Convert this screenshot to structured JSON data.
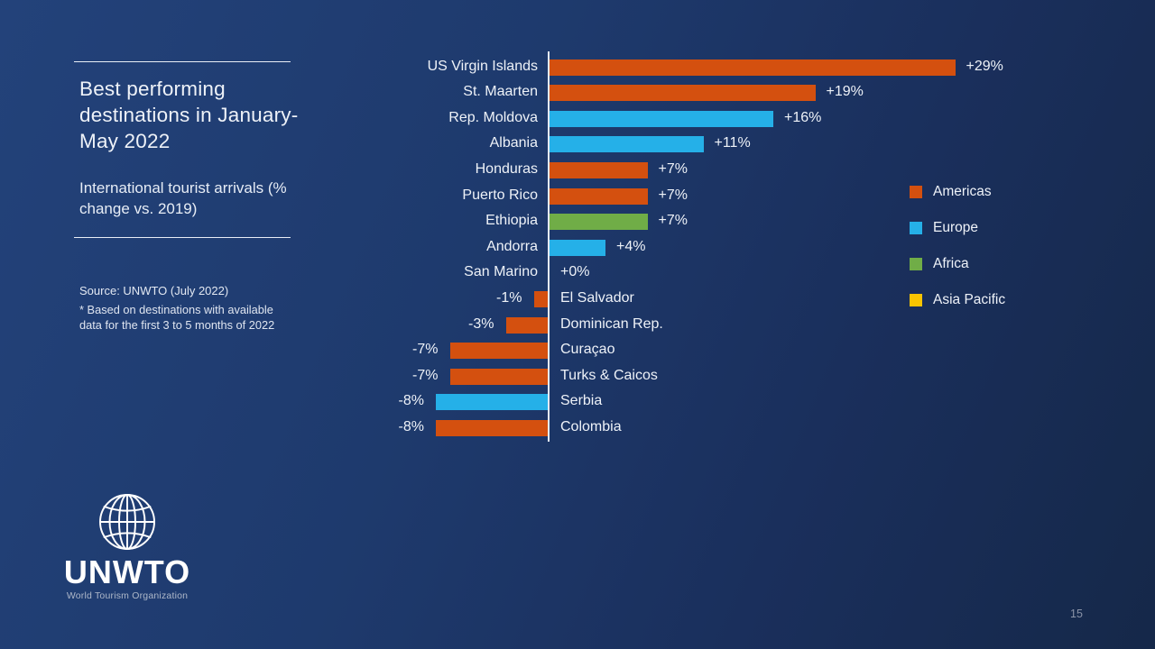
{
  "slide": {
    "title": "Best performing destinations in January-May 2022",
    "subtitle": "International tourist arrivals (% change vs. 2019)",
    "source": "Source: UNWTO (July 2022)",
    "footnote": "*  Based on destinations with available data for the first 3 to 5 months of 2022",
    "page_number": "15",
    "logo": {
      "name": "UNWTO",
      "tagline": "World Tourism Organization"
    }
  },
  "colors": {
    "background_left": "#23427a",
    "background_right": "#152849",
    "text": "#eef2f8",
    "axis": "#e4eaf3",
    "regions": {
      "americas": "#d4500f",
      "europe": "#25b0e8",
      "africa": "#70ad47",
      "asia_pacific": "#f9c401"
    }
  },
  "chart_data": {
    "type": "bar",
    "orientation": "horizontal",
    "title": "Best performing destinations in January-May 2022",
    "xlabel": "% change vs. 2019",
    "ylabel": "",
    "xlim": [
      -10,
      31
    ],
    "grid": false,
    "legend_position": "right",
    "categories": [
      "US Virgin Islands",
      "St. Maarten",
      "Rep. Moldova",
      "Albania",
      "Honduras",
      "Puerto Rico",
      "Ethiopia",
      "Andorra",
      "San Marino",
      "El Salvador",
      "Dominican Rep.",
      "Curaçao",
      "Turks & Caicos",
      "Serbia",
      "Colombia"
    ],
    "values": [
      29,
      19,
      16,
      11,
      7,
      7,
      7,
      4,
      0,
      -1,
      -3,
      -7,
      -7,
      -8,
      -8
    ],
    "value_labels": [
      "+29%",
      "+19%",
      "+16%",
      "+11%",
      "+7%",
      "+7%",
      "+7%",
      "+4%",
      "+0%",
      "-1%",
      "-3%",
      "-7%",
      "-7%",
      "-8%",
      "-8%"
    ],
    "regions": [
      "americas",
      "americas",
      "europe",
      "europe",
      "americas",
      "americas",
      "africa",
      "europe",
      "europe",
      "americas",
      "americas",
      "americas",
      "americas",
      "europe",
      "americas"
    ],
    "legend": [
      {
        "key": "americas",
        "label": "Americas"
      },
      {
        "key": "europe",
        "label": "Europe"
      },
      {
        "key": "africa",
        "label": "Africa"
      },
      {
        "key": "asia_pacific",
        "label": "Asia Pacific"
      }
    ]
  }
}
